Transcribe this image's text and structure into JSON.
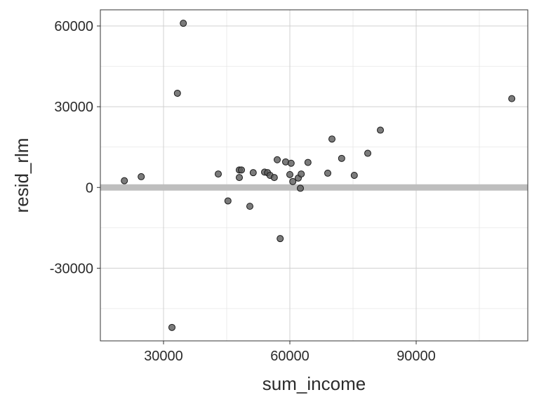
{
  "chart_data": {
    "type": "scatter",
    "xlabel": "sum_income",
    "ylabel": "resid_rlm",
    "xlim": [
      15000,
      116500
    ],
    "ylim": [
      -57000,
      66000
    ],
    "x_ticks": [
      30000,
      60000,
      90000
    ],
    "y_ticks": [
      -30000,
      0,
      30000,
      60000
    ],
    "x_tick_labels": [
      "30000",
      "60000",
      "90000"
    ],
    "y_tick_labels": [
      "-30000",
      "0",
      "30000",
      "60000"
    ],
    "x_minor_ticks": [
      45000,
      75000,
      105000
    ],
    "y_minor_ticks": [
      -45000,
      -15000,
      15000,
      45000
    ],
    "grid": true,
    "reference_line": {
      "y": 0,
      "color": "#bebebe"
    },
    "point_color": "#5a5a5a",
    "points": [
      {
        "x": 20700,
        "y": 2500
      },
      {
        "x": 24700,
        "y": 4000
      },
      {
        "x": 32000,
        "y": -52000
      },
      {
        "x": 33300,
        "y": 35000
      },
      {
        "x": 34700,
        "y": 61000
      },
      {
        "x": 43000,
        "y": 5000
      },
      {
        "x": 45300,
        "y": -5000
      },
      {
        "x": 48000,
        "y": 3700
      },
      {
        "x": 48000,
        "y": 6500
      },
      {
        "x": 48500,
        "y": 6500
      },
      {
        "x": 50500,
        "y": -7000
      },
      {
        "x": 51300,
        "y": 5500
      },
      {
        "x": 54000,
        "y": 5700
      },
      {
        "x": 54700,
        "y": 5500
      },
      {
        "x": 55300,
        "y": 4500
      },
      {
        "x": 56300,
        "y": 3700
      },
      {
        "x": 57000,
        "y": 10300
      },
      {
        "x": 57700,
        "y": -19000
      },
      {
        "x": 59000,
        "y": 9500
      },
      {
        "x": 60000,
        "y": 4800
      },
      {
        "x": 60300,
        "y": 9000
      },
      {
        "x": 60700,
        "y": 2200
      },
      {
        "x": 62000,
        "y": 3500
      },
      {
        "x": 62500,
        "y": -300
      },
      {
        "x": 62700,
        "y": 5000
      },
      {
        "x": 64300,
        "y": 9300
      },
      {
        "x": 69000,
        "y": 5300
      },
      {
        "x": 70000,
        "y": 18000
      },
      {
        "x": 72300,
        "y": 10800
      },
      {
        "x": 75300,
        "y": 4500
      },
      {
        "x": 78500,
        "y": 12700
      },
      {
        "x": 81500,
        "y": 21300
      },
      {
        "x": 112700,
        "y": 33000
      }
    ]
  }
}
